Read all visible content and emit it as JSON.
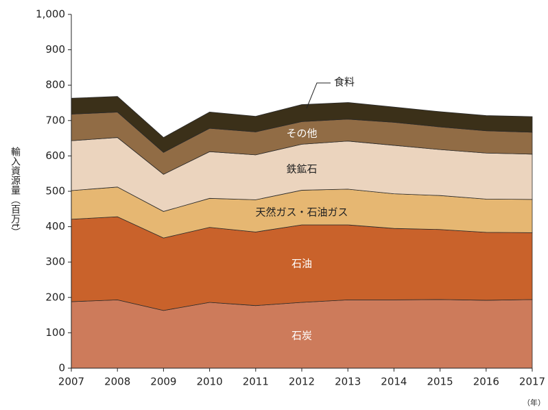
{
  "chart_data": {
    "type": "stacked_area",
    "y_label": "輸入資源量（百万t）",
    "x_unit": "（年）",
    "x": [
      2007,
      2008,
      2009,
      2010,
      2011,
      2012,
      2013,
      2014,
      2015,
      2016,
      2017
    ],
    "xlim": [
      2007,
      2017
    ],
    "xticks": [
      2007,
      2008,
      2009,
      2010,
      2011,
      2012,
      2013,
      2014,
      2015,
      2016,
      2017
    ],
    "ylim": [
      0,
      1000
    ],
    "yticks": [
      0,
      100,
      200,
      300,
      400,
      500,
      600,
      700,
      800,
      900,
      {
        "value": 1000,
        "label": "1,000"
      }
    ],
    "series": [
      {
        "name": "石炭",
        "color": "#cd7b5b",
        "values": [
          188,
          193,
          163,
          186,
          177,
          186,
          193,
          193,
          194,
          192,
          194
        ]
      },
      {
        "name": "石油",
        "color": "#c9622b",
        "values": [
          233,
          235,
          205,
          212,
          208,
          219,
          212,
          202,
          198,
          192,
          189
        ]
      },
      {
        "name": "天然ガス・石油ガス",
        "color": "#e6b772",
        "values": [
          81,
          84,
          75,
          82,
          91,
          98,
          101,
          98,
          96,
          94,
          94
        ]
      },
      {
        "name": "鉄鉱石",
        "color": "#ebd4be",
        "values": [
          141,
          140,
          105,
          132,
          127,
          130,
          136,
          137,
          130,
          130,
          128
        ]
      },
      {
        "name": "その他",
        "color": "#916c45",
        "values": [
          75,
          72,
          62,
          66,
          65,
          64,
          62,
          65,
          64,
          63,
          62
        ]
      },
      {
        "name": "食料",
        "color": "#3b3019",
        "values": [
          45,
          44,
          42,
          46,
          44,
          48,
          47,
          43,
          43,
          43,
          44
        ]
      }
    ]
  }
}
